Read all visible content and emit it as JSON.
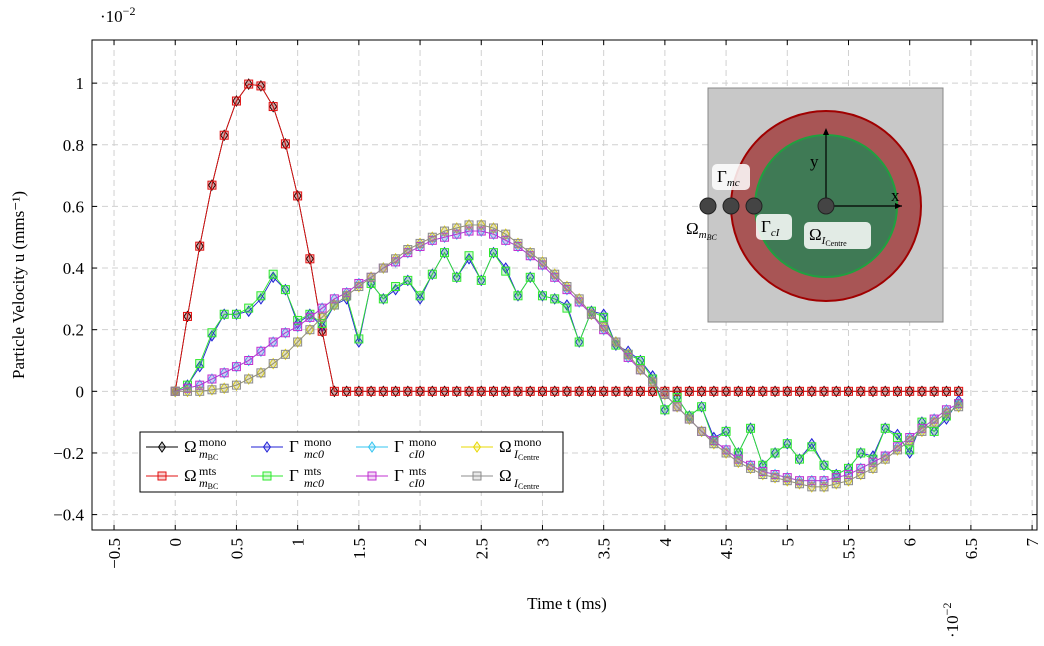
{
  "chart_data": {
    "type": "line",
    "x_label": "Time t (ms)",
    "y_label": "Particle Velocity u (mms⁻¹)",
    "x_multiplier": {
      "base": "·10",
      "sup": "−2"
    },
    "y_multiplier": {
      "base": "·10",
      "sup": "−2"
    },
    "xlim": [
      -0.68,
      7.04
    ],
    "ylim": [
      -0.45,
      1.14
    ],
    "xticks": [
      {
        "value": -0.5,
        "label": "−0.5"
      },
      0,
      0.5,
      1,
      1.5,
      2,
      2.5,
      3,
      3.5,
      4,
      4.5,
      5,
      5.5,
      6,
      6.5,
      7
    ],
    "yticks": [
      {
        "value": -0.4,
        "label": "−0.4"
      },
      {
        "value": -0.2,
        "label": "−0.2"
      },
      0,
      0.2,
      0.4,
      0.6,
      0.8,
      1
    ],
    "grid": true,
    "legend_position": "lower left",
    "legend_columns": 4,
    "x": [
      0,
      0.1,
      0.2,
      0.3,
      0.4,
      0.5,
      0.6,
      0.7,
      0.8,
      0.9,
      1,
      1.1,
      1.2,
      1.3,
      1.4,
      1.5,
      1.6,
      1.7,
      1.8,
      1.9,
      2,
      2.1,
      2.2,
      2.3,
      2.4,
      2.5,
      2.6,
      2.7,
      2.8,
      2.9,
      3,
      3.1,
      3.2,
      3.3,
      3.4,
      3.5,
      3.6,
      3.7,
      3.8,
      3.9,
      4,
      4.1,
      4.2,
      4.3,
      4.4,
      4.5,
      4.6,
      4.7,
      4.8,
      4.9,
      5,
      5.1,
      5.2,
      5.3,
      5.4,
      5.5,
      5.6,
      5.7,
      5.8,
      5.9,
      6,
      6.1,
      6.2,
      6.3,
      6.4
    ],
    "series": [
      {
        "name": {
          "base": "Ω",
          "sup": "mono",
          "sub": "m",
          "subsub": "BC"
        },
        "color": "#000000",
        "marker": "diamond",
        "values": [
          0,
          0.243,
          0.471,
          0.669,
          0.831,
          0.942,
          0.997,
          0.991,
          0.924,
          0.803,
          0.634,
          0.43,
          0.195,
          0,
          0,
          0,
          0,
          0,
          0,
          0,
          0,
          0,
          0,
          0,
          0,
          0,
          0,
          0,
          0,
          0,
          0,
          0,
          0,
          0,
          0,
          0,
          0,
          0,
          0,
          0,
          0,
          0,
          0,
          0,
          0,
          0,
          0,
          0,
          0,
          0,
          0,
          0,
          0,
          0,
          0,
          0,
          0,
          0,
          0,
          0,
          0,
          0,
          0,
          0,
          0
        ]
      },
      {
        "name": {
          "base": "Γ",
          "sup": "mono",
          "sub": "mc0"
        },
        "color": "#1f1fd6",
        "marker": "diamond",
        "values": [
          0,
          0.02,
          0.08,
          0.18,
          0.25,
          0.25,
          0.26,
          0.3,
          0.37,
          0.33,
          0.22,
          0.25,
          0.21,
          0.28,
          0.3,
          0.16,
          0.35,
          0.3,
          0.33,
          0.36,
          0.3,
          0.38,
          0.45,
          0.37,
          0.43,
          0.36,
          0.45,
          0.4,
          0.31,
          0.37,
          0.31,
          0.3,
          0.28,
          0.16,
          0.26,
          0.25,
          0.15,
          0.13,
          0.1,
          0.05,
          -0.06,
          -0.02,
          -0.08,
          -0.05,
          -0.15,
          -0.13,
          -0.2,
          -0.12,
          -0.24,
          -0.2,
          -0.17,
          -0.22,
          -0.17,
          -0.24,
          -0.27,
          -0.25,
          -0.2,
          -0.21,
          -0.12,
          -0.14,
          -0.2,
          -0.1,
          -0.13,
          -0.09,
          -0.03
        ]
      },
      {
        "name": {
          "base": "Γ",
          "sup": "mono",
          "sub": "cI0"
        },
        "color": "#33c4f0",
        "marker": "diamond",
        "values": [
          0,
          0.01,
          0.02,
          0.04,
          0.06,
          0.08,
          0.1,
          0.13,
          0.16,
          0.19,
          0.21,
          0.24,
          0.27,
          0.3,
          0.32,
          0.35,
          0.37,
          0.4,
          0.42,
          0.45,
          0.47,
          0.49,
          0.5,
          0.51,
          0.52,
          0.52,
          0.51,
          0.49,
          0.47,
          0.44,
          0.41,
          0.37,
          0.33,
          0.29,
          0.25,
          0.2,
          0.16,
          0.11,
          0.07,
          0.03,
          -0.01,
          -0.05,
          -0.09,
          -0.13,
          -0.16,
          -0.19,
          -0.22,
          -0.24,
          -0.26,
          -0.27,
          -0.28,
          -0.29,
          -0.29,
          -0.29,
          -0.28,
          -0.27,
          -0.25,
          -0.23,
          -0.21,
          -0.18,
          -0.15,
          -0.12,
          -0.09,
          -0.06,
          -0.04
        ]
      },
      {
        "name": {
          "base": "Ω",
          "sup": "mono",
          "sub": "I",
          "subsub": "Centre"
        },
        "color": "#e8d800",
        "marker": "diamond",
        "values": [
          0,
          0,
          0,
          0.005,
          0.01,
          0.02,
          0.04,
          0.06,
          0.09,
          0.12,
          0.16,
          0.2,
          0.24,
          0.28,
          0.31,
          0.34,
          0.37,
          0.4,
          0.43,
          0.46,
          0.48,
          0.5,
          0.52,
          0.53,
          0.54,
          0.54,
          0.53,
          0.51,
          0.48,
          0.45,
          0.42,
          0.38,
          0.34,
          0.3,
          0.25,
          0.21,
          0.16,
          0.12,
          0.07,
          0.03,
          -0.01,
          -0.05,
          -0.09,
          -0.13,
          -0.17,
          -0.2,
          -0.23,
          -0.25,
          -0.27,
          -0.28,
          -0.29,
          -0.3,
          -0.31,
          -0.31,
          -0.3,
          -0.29,
          -0.27,
          -0.25,
          -0.22,
          -0.19,
          -0.16,
          -0.13,
          -0.1,
          -0.07,
          -0.05
        ]
      },
      {
        "name": {
          "base": "Ω",
          "sup": "mts",
          "sub": "m",
          "subsub": "BC"
        },
        "color": "#e01010",
        "marker": "square",
        "values": [
          0,
          0.243,
          0.471,
          0.669,
          0.831,
          0.942,
          0.997,
          0.991,
          0.924,
          0.803,
          0.634,
          0.43,
          0.195,
          0,
          0,
          0,
          0,
          0,
          0,
          0,
          0,
          0,
          0,
          0,
          0,
          0,
          0,
          0,
          0,
          0,
          0,
          0,
          0,
          0,
          0,
          0,
          0,
          0,
          0,
          0,
          0,
          0,
          0,
          0,
          0,
          0,
          0,
          0,
          0,
          0,
          0,
          0,
          0,
          0,
          0,
          0,
          0,
          0,
          0,
          0,
          0,
          0,
          0,
          0,
          0
        ]
      },
      {
        "name": {
          "base": "Γ",
          "sup": "mts",
          "sub": "mc0"
        },
        "color": "#2ee82e",
        "marker": "square",
        "values": [
          0,
          0.02,
          0.09,
          0.19,
          0.25,
          0.25,
          0.27,
          0.31,
          0.38,
          0.33,
          0.23,
          0.25,
          0.22,
          0.28,
          0.31,
          0.17,
          0.35,
          0.3,
          0.34,
          0.36,
          0.31,
          0.38,
          0.45,
          0.37,
          0.44,
          0.36,
          0.45,
          0.39,
          0.31,
          0.37,
          0.31,
          0.3,
          0.27,
          0.16,
          0.26,
          0.24,
          0.15,
          0.12,
          0.1,
          0.04,
          -0.06,
          -0.02,
          -0.08,
          -0.05,
          -0.16,
          -0.13,
          -0.2,
          -0.12,
          -0.24,
          -0.2,
          -0.17,
          -0.22,
          -0.18,
          -0.24,
          -0.27,
          -0.25,
          -0.2,
          -0.22,
          -0.12,
          -0.15,
          -0.19,
          -0.1,
          -0.13,
          -0.08,
          -0.04
        ]
      },
      {
        "name": {
          "base": "Γ",
          "sup": "mts",
          "sub": "cI0"
        },
        "color": "#c030d0",
        "marker": "square",
        "values": [
          0,
          0.01,
          0.02,
          0.04,
          0.06,
          0.08,
          0.1,
          0.13,
          0.16,
          0.19,
          0.21,
          0.24,
          0.27,
          0.3,
          0.32,
          0.35,
          0.37,
          0.4,
          0.42,
          0.45,
          0.47,
          0.49,
          0.5,
          0.51,
          0.52,
          0.52,
          0.51,
          0.49,
          0.47,
          0.44,
          0.41,
          0.37,
          0.33,
          0.29,
          0.25,
          0.2,
          0.16,
          0.11,
          0.07,
          0.03,
          -0.01,
          -0.05,
          -0.09,
          -0.13,
          -0.16,
          -0.19,
          -0.22,
          -0.24,
          -0.26,
          -0.27,
          -0.28,
          -0.29,
          -0.29,
          -0.29,
          -0.28,
          -0.27,
          -0.25,
          -0.23,
          -0.21,
          -0.18,
          -0.15,
          -0.12,
          -0.09,
          -0.06,
          -0.04
        ]
      },
      {
        "name": {
          "base": "Ω",
          "sub": "I",
          "subsub": "Centre"
        },
        "color": "#8c8c8c",
        "marker": "square",
        "values": [
          0,
          0,
          0,
          0.005,
          0.01,
          0.02,
          0.04,
          0.06,
          0.09,
          0.12,
          0.16,
          0.2,
          0.24,
          0.28,
          0.31,
          0.34,
          0.37,
          0.4,
          0.43,
          0.46,
          0.48,
          0.5,
          0.52,
          0.53,
          0.54,
          0.54,
          0.53,
          0.51,
          0.48,
          0.45,
          0.42,
          0.38,
          0.34,
          0.3,
          0.25,
          0.21,
          0.16,
          0.12,
          0.07,
          0.03,
          -0.01,
          -0.05,
          -0.09,
          -0.13,
          -0.17,
          -0.2,
          -0.23,
          -0.25,
          -0.27,
          -0.28,
          -0.29,
          -0.3,
          -0.31,
          -0.31,
          -0.3,
          -0.29,
          -0.27,
          -0.25,
          -0.22,
          -0.19,
          -0.16,
          -0.13,
          -0.1,
          -0.07,
          -0.05
        ]
      }
    ],
    "inset": {
      "axis_x": "x",
      "axis_y": "y",
      "gamma_mc": {
        "base": "Γ",
        "sub": "mc"
      },
      "omega_mbc": {
        "base": "Ω",
        "sub": "m",
        "subsub": "BC"
      },
      "gamma_ci": {
        "base": "Γ",
        "sub": "cI"
      },
      "omega_icentre": {
        "base": "Ω",
        "sub": "I",
        "subsub": "Centre"
      }
    }
  }
}
